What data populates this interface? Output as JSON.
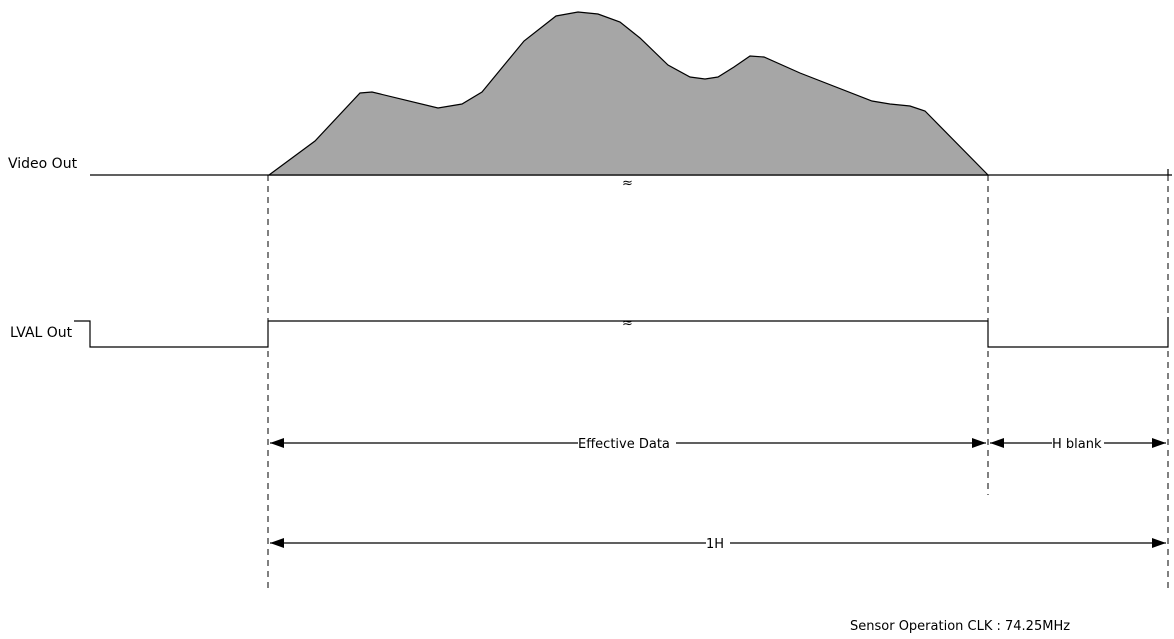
{
  "signals": {
    "video_out": "Video Out",
    "lval_out": "LVAL Out"
  },
  "break_mark": "≈",
  "timing": {
    "effective_data": "Effective Data",
    "h_blank": "H blank",
    "one_h": "1H"
  },
  "note": "Sensor Operation CLK : 74.25MHz",
  "colors": {
    "waveform_fill": "#a6a6a6",
    "line": "#000000"
  }
}
